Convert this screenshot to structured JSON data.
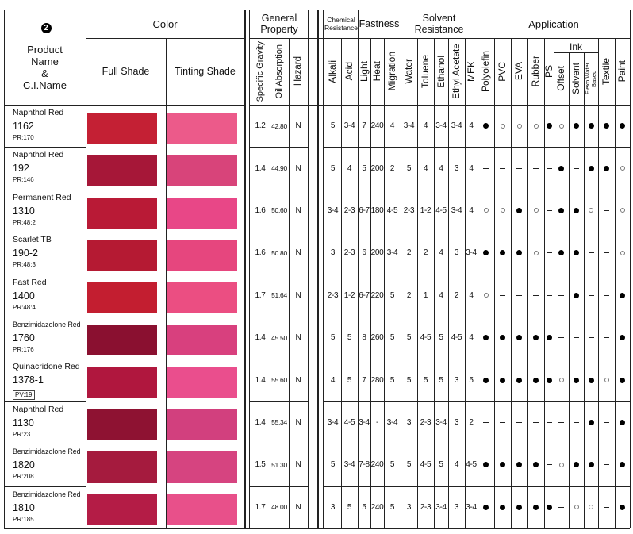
{
  "header": {
    "badge": "2",
    "product_col": [
      "Product",
      "Name",
      "&",
      "C.I.Name"
    ],
    "color": "Color",
    "full_shade": "Full Shade",
    "tinting_shade": "Tinting Shade",
    "general_property": [
      "General",
      "Property"
    ],
    "chemical_resistance": [
      "Chemical",
      "Resistance"
    ],
    "fastness": "Fastness",
    "solvent_resistance": [
      "Solvent",
      "Resistance"
    ],
    "application": "Application",
    "ink": "Ink"
  },
  "columns": [
    {
      "label": "Specific Gravity",
      "font": 11
    },
    {
      "label": "Oil Absorption",
      "font": 11
    },
    {
      "label": "Hazard",
      "font": 11.5
    },
    {
      "label": "Alkali",
      "font": 12
    },
    {
      "label": "Acid",
      "font": 12
    },
    {
      "label": "Light",
      "font": 12
    },
    {
      "label": "Heat",
      "font": 12
    },
    {
      "label": "Migration",
      "font": 12
    },
    {
      "label": "Water",
      "font": 12
    },
    {
      "label": "Toluene",
      "font": 12
    },
    {
      "label": "Ethanol",
      "font": 12
    },
    {
      "label": "Ethyl Acetate",
      "font": 12
    },
    {
      "label": "MEK",
      "font": 12
    },
    {
      "label": "Polyolefin",
      "font": 12
    },
    {
      "label": "PVC",
      "font": 12
    },
    {
      "label": "EVA",
      "font": 12
    },
    {
      "label": "Rubber",
      "font": 12
    },
    {
      "label": "PS",
      "font": 12
    },
    {
      "label": "Offset",
      "font": 12
    },
    {
      "label": "Solvent",
      "font": 12
    },
    {
      "label": "Flexo Water Based",
      "font": 7.5
    },
    {
      "label": "Textile",
      "font": 12
    },
    {
      "label": "Paint",
      "font": 12
    }
  ],
  "products": [
    {
      "name": "Naphthol Red",
      "number": "1162",
      "ci": "PR:170",
      "full": "#c42034",
      "tint": "#ec5a8a",
      "values": [
        "1.2",
        "42.80",
        "N",
        "5",
        "3-4",
        "7",
        "240",
        "4",
        "3-4",
        "4",
        "3-4",
        "3-4",
        "4"
      ],
      "app": [
        "F",
        "O",
        "O",
        "O",
        "F",
        "O",
        "F",
        "F",
        "F",
        "F"
      ]
    },
    {
      "name": "Naphthol Red",
      "number": "192",
      "ci": "PR:146",
      "full": "#a61738",
      "tint": "#d8447a",
      "values": [
        "1.4",
        "44.90",
        "N",
        "5",
        "4",
        "5",
        "200",
        "2",
        "5",
        "4",
        "4",
        "3",
        "4"
      ],
      "app": [
        "-",
        "-",
        "-",
        "-",
        "-",
        "F",
        "-",
        "F",
        "F",
        "O"
      ]
    },
    {
      "name": "Permanent Red",
      "number": "1310",
      "ci": "PR:48:2",
      "full": "#b91a36",
      "tint": "#e84787",
      "values": [
        "1.6",
        "50.60",
        "N",
        "3-4",
        "2-3",
        "6-7",
        "180",
        "4-5",
        "2-3",
        "1-2",
        "4-5",
        "3-4",
        "4"
      ],
      "app": [
        "O",
        "O",
        "F",
        "O",
        "-",
        "F",
        "F",
        "O",
        "-",
        "O"
      ]
    },
    {
      "name": "Scarlet TB",
      "number": "190-2",
      "ci": "PR:48:3",
      "full": "#b51a33",
      "tint": "#e6467e",
      "values": [
        "1.6",
        "50.80",
        "N",
        "3",
        "2-3",
        "6",
        "200",
        "3-4",
        "2",
        "2",
        "4",
        "3",
        "3-4"
      ],
      "app": [
        "F",
        "F",
        "F",
        "O",
        "-",
        "F",
        "F",
        "-",
        "-",
        "O"
      ]
    },
    {
      "name": "Fast Red",
      "number": "1400",
      "ci": "PR:48:4",
      "full": "#c31e30",
      "tint": "#eb4e82",
      "values": [
        "1.7",
        "51.64",
        "N",
        "2-3",
        "1-2",
        "6-7",
        "220",
        "5",
        "2",
        "1",
        "4",
        "2",
        "4"
      ],
      "app": [
        "O",
        "-",
        "-",
        "-",
        "-",
        "-",
        "F",
        "-",
        "-",
        "F"
      ]
    },
    {
      "name": "Benzimidazolone Red",
      "number": "1760",
      "ci": "PR:176",
      "full": "#8a1030",
      "tint": "#d8407e",
      "values": [
        "1.4",
        "45.50",
        "N",
        "5",
        "5",
        "8",
        "260",
        "5",
        "5",
        "4-5",
        "5",
        "4-5",
        "4"
      ],
      "app": [
        "F",
        "F",
        "F",
        "F",
        "F",
        "-",
        "-",
        "-",
        "-",
        "F"
      ]
    },
    {
      "name": "Quinacridone Red",
      "number": "1378-1",
      "ci": "PV:19",
      "full": "#b0173e",
      "tint": "#ea4e8d",
      "values": [
        "1.4",
        "55.60",
        "N",
        "4",
        "5",
        "7",
        "280",
        "5",
        "5",
        "5",
        "5",
        "3",
        "5"
      ],
      "app": [
        "F",
        "F",
        "F",
        "F",
        "F",
        "O",
        "F",
        "F",
        "O",
        "F"
      ]
    },
    {
      "name": "Naphthol Red",
      "number": "1130",
      "ci": "PR:23",
      "full": "#8e1232",
      "tint": "#d2407e",
      "values": [
        "1.4",
        "55.34",
        "N",
        "3-4",
        "4-5",
        "3-4",
        "-",
        "3-4",
        "3",
        "2-3",
        "3-4",
        "3",
        "2"
      ],
      "app": [
        "-",
        "-",
        "-",
        "-",
        "-",
        "-",
        "-",
        "F",
        "-",
        "F"
      ]
    },
    {
      "name": "Benzimidazolone Red",
      "number": "1820",
      "ci": "PR:208",
      "full": "#a51b3e",
      "tint": "#d64480",
      "values": [
        "1.5",
        "51.30",
        "N",
        "5",
        "3-4",
        "7-8",
        "240",
        "5",
        "5",
        "4-5",
        "5",
        "4",
        "4-5"
      ],
      "app": [
        "F",
        "F",
        "F",
        "F",
        "-",
        "O",
        "F",
        "F",
        "-",
        "F"
      ]
    },
    {
      "name": "Benzimidazolone Red",
      "number": "1810",
      "ci": "PR:185",
      "full": "#b41c46",
      "tint": "#e8508a",
      "values": [
        "1.7",
        "48.00",
        "N",
        "3",
        "5",
        "5",
        "240",
        "5",
        "3",
        "2-3",
        "3-4",
        "3",
        "3-4"
      ],
      "app": [
        "F",
        "F",
        "F",
        "F",
        "F",
        "-",
        "O",
        "O",
        "-",
        "F"
      ]
    }
  ]
}
